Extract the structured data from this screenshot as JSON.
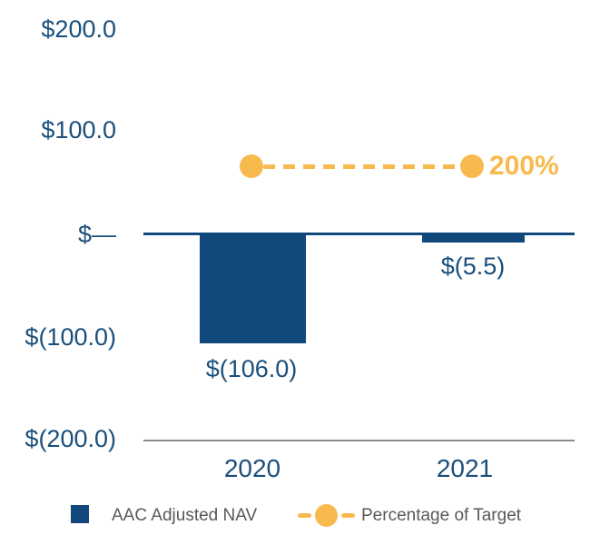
{
  "chart_data": {
    "type": "bar",
    "subtype": "combo-bar-and-line",
    "title": "",
    "categories": [
      "2020",
      "2021"
    ],
    "series": [
      {
        "name": "AAC Adjusted NAV",
        "type": "bar",
        "values": [
          -106.0,
          -5.5
        ],
        "data_labels": [
          "$(106.0)",
          "$(5.5)"
        ],
        "color": "#11497C"
      },
      {
        "name": "Percentage of Target",
        "type": "line",
        "line_style": "dashed",
        "marker": "circle",
        "values": [
          200,
          200
        ],
        "values_unit": "%",
        "data_label": "200%",
        "color": "#F8BA4E"
      }
    ],
    "y_axis": {
      "tick_labels": [
        "$200.0",
        "$100.0",
        "$—",
        "$(100.0)",
        "$(200.0)"
      ],
      "range": [
        -200,
        200
      ],
      "number_format": "accounting"
    },
    "x_axis": {
      "tick_labels": [
        "2020",
        "2021"
      ]
    },
    "grid": false,
    "legend_position": "bottom"
  },
  "legend": {
    "items": [
      {
        "label": "AAC Adjusted NAV",
        "swatch": "square"
      },
      {
        "label": "Percentage of Target",
        "swatch": "dashed-line-with-circle"
      }
    ]
  },
  "colors": {
    "bar_navy": "#11497C",
    "text_navy": "#1A4F7C",
    "line_yellow": "#F8BA4E",
    "bottom_axis_gray": "#8C8C8C",
    "legend_text_gray": "#595959",
    "background": "#FFFFFF"
  }
}
